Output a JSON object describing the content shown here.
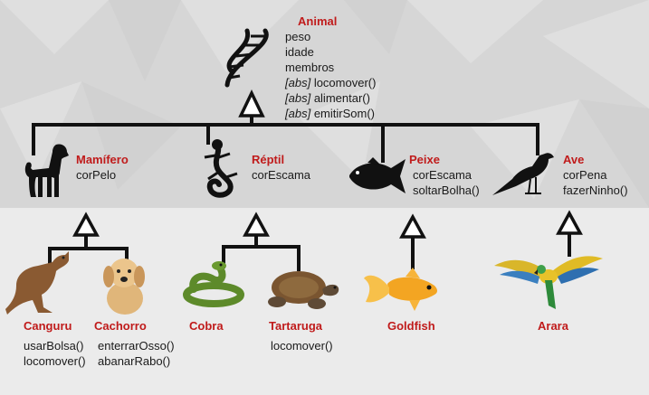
{
  "root": {
    "name": "Animal",
    "attributes": [
      "peso",
      "idade",
      "membros"
    ],
    "abstract_tag": "[abs]",
    "abstract_methods": [
      "locomover()",
      "alimentar()",
      "emitirSom()"
    ],
    "icon": "dna-icon"
  },
  "level1": [
    {
      "name": "Mamífero",
      "members": [
        "corPelo"
      ],
      "icon": "dog-icon"
    },
    {
      "name": "Réptil",
      "members": [
        "corEscama"
      ],
      "icon": "lizard-icon"
    },
    {
      "name": "Peixe",
      "members": [
        "corEscama",
        "soltarBolha()"
      ],
      "icon": "fish-icon"
    },
    {
      "name": "Ave",
      "members": [
        "corPena",
        "fazerNinho()"
      ],
      "icon": "bird-icon"
    }
  ],
  "level2": [
    {
      "name": "Canguru",
      "members": [
        "usarBolsa()",
        "locomover()"
      ],
      "icon": "kangaroo-icon"
    },
    {
      "name": "Cachorro",
      "members": [
        "enterrarOsso()",
        "abanarRabo()"
      ],
      "icon": "puppy-icon"
    },
    {
      "name": "Cobra",
      "members": [],
      "icon": "snake-icon"
    },
    {
      "name": "Tartaruga",
      "members": [
        "locomover()"
      ],
      "icon": "turtle-icon"
    },
    {
      "name": "Goldfish",
      "members": [],
      "icon": "goldfish-icon"
    },
    {
      "name": "Arara",
      "members": [],
      "icon": "macaw-icon"
    }
  ],
  "colors": {
    "class_name": "#c01b1b",
    "text": "#1a1a1a",
    "line": "#111111",
    "background_top": "#dcdcdc",
    "background_bottom": "#ececec"
  }
}
